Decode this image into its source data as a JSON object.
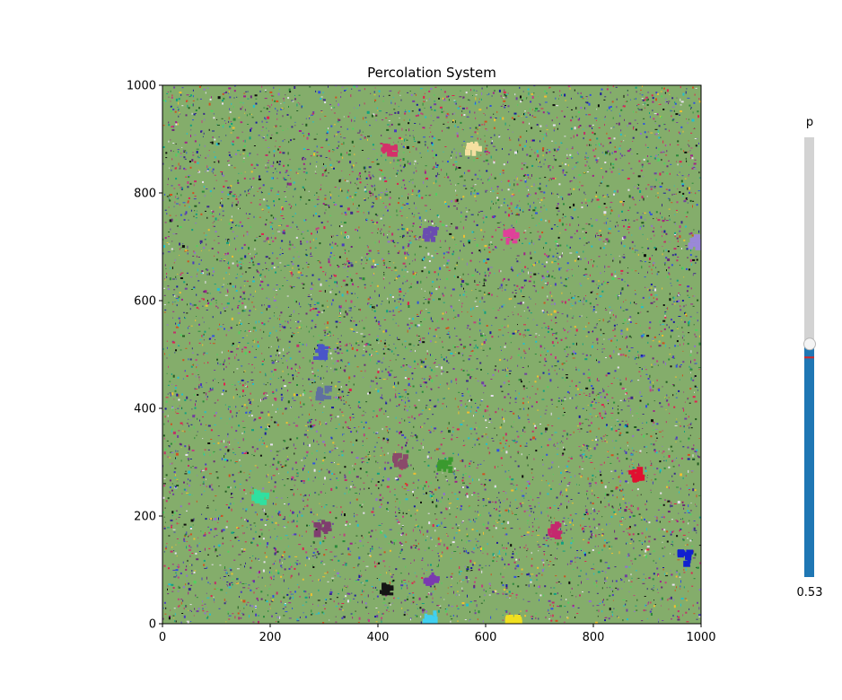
{
  "chart_data": {
    "type": "heatmap",
    "title": "Percolation System",
    "xlim": [
      0,
      1000
    ],
    "ylim": [
      0,
      1000
    ],
    "x_ticks": [
      0,
      200,
      400,
      600,
      800,
      1000
    ],
    "y_ticks": [
      0,
      200,
      400,
      600,
      800,
      1000
    ],
    "x_tick_labels": [
      "0",
      "200",
      "400",
      "600",
      "800",
      "1000"
    ],
    "y_tick_labels": [
      "0",
      "200",
      "400",
      "600",
      "800",
      "1000"
    ],
    "background_cluster_color": "#84ad6b",
    "grid": false,
    "notable_clusters": [
      {
        "x": 298,
        "y": 177,
        "color": "#7f3d6f"
      },
      {
        "x": 729,
        "y": 173,
        "color": "#c4286e"
      },
      {
        "x": 496,
        "y": 723,
        "color": "#6a4cb0"
      },
      {
        "x": 578,
        "y": 882,
        "color": "#f5e0a0"
      },
      {
        "x": 418,
        "y": 62,
        "color": "#141414"
      },
      {
        "x": 293,
        "y": 504,
        "color": "#4a55c8"
      },
      {
        "x": 525,
        "y": 294,
        "color": "#3a9a2e"
      },
      {
        "x": 968,
        "y": 122,
        "color": "#1020d0"
      },
      {
        "x": 422,
        "y": 880,
        "color": "#d4306a"
      },
      {
        "x": 648,
        "y": 720,
        "color": "#e0409a"
      },
      {
        "x": 992,
        "y": 710,
        "color": "#9a88d8"
      },
      {
        "x": 298,
        "y": 428,
        "color": "#6070a0"
      },
      {
        "x": 880,
        "y": 275,
        "color": "#e01030"
      },
      {
        "x": 500,
        "y": 82,
        "color": "#7a3ab0"
      },
      {
        "x": 440,
        "y": 302,
        "color": "#8a4a6a"
      },
      {
        "x": 183,
        "y": 233,
        "color": "#30e0a0"
      },
      {
        "x": 500,
        "y": 10,
        "color": "#40d0f0"
      },
      {
        "x": 653,
        "y": 2,
        "color": "#f0e020"
      }
    ]
  },
  "slider": {
    "label": "p",
    "value": 0.53,
    "value_text": "0.53",
    "min": 0,
    "max": 1,
    "fill_color": "#1f77b4",
    "track_color": "#d3d3d3",
    "marker_color": "#d62728"
  }
}
